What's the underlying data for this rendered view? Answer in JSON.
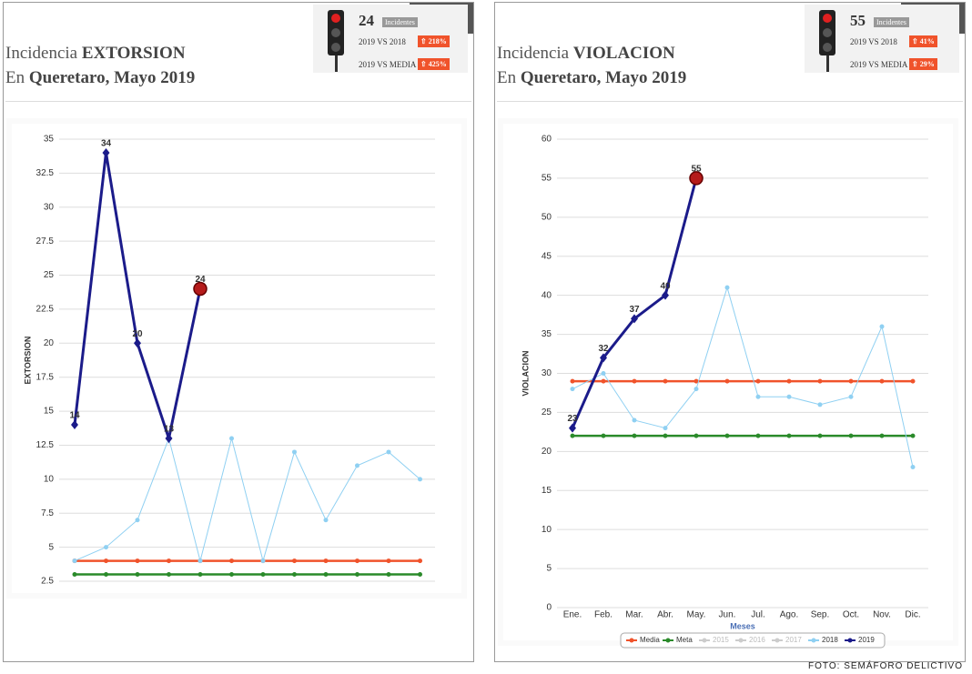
{
  "panels": [
    {
      "title_prefix": "Incidencia",
      "crime": "EXTORSION",
      "loc_prefix": "En",
      "location": "Queretaro,",
      "period": "Mayo 2019",
      "box": {
        "count": "24",
        "count_label": "Incidentes",
        "cmp1": "2019 VS 2018",
        "pct1": "218%",
        "cmp2": "2019 VS MEDIA",
        "pct2": "425%"
      }
    },
    {
      "title_prefix": "Incidencia",
      "crime": "VIOLACION",
      "loc_prefix": "En",
      "location": "Queretaro,",
      "period": "Mayo 2019",
      "box": {
        "count": "55",
        "count_label": "Incidentes",
        "cmp1": "2019 VS 2018",
        "pct1": "41%",
        "cmp2": "2019 VS MEDIA",
        "pct2": "29%"
      }
    }
  ],
  "footer": "FOTO: SEMÁFORO DELICTIVO",
  "chart_data": [
    {
      "type": "line",
      "y_label": "EXTORSION",
      "categories": [
        null,
        null,
        null,
        null,
        null,
        null,
        null,
        null,
        null,
        null,
        null,
        null
      ],
      "ylim": [
        2.5,
        35
      ],
      "yticks": [
        2.5,
        5,
        7.5,
        10,
        12.5,
        15,
        17.5,
        20,
        22.5,
        25,
        27.5,
        30,
        32.5,
        35
      ],
      "grid": true,
      "legend": false,
      "series": [
        {
          "name": "Media",
          "color": "#f0532b",
          "values": [
            4,
            4,
            4,
            4,
            4,
            4,
            4,
            4,
            4,
            4,
            4,
            4
          ]
        },
        {
          "name": "Meta",
          "color": "#2a8a2a",
          "values": [
            3,
            3,
            3,
            3,
            3,
            3,
            3,
            3,
            3,
            3,
            3,
            3
          ]
        },
        {
          "name": "2018",
          "color": "#8fd0f2",
          "values": [
            4,
            5,
            7,
            13,
            4,
            13,
            4,
            12,
            7,
            11,
            12,
            10
          ]
        },
        {
          "name": "2019",
          "color": "#1b1b8a",
          "values": [
            14,
            34,
            20,
            13,
            24,
            null,
            null,
            null,
            null,
            null,
            null,
            null
          ],
          "data_labels": true
        }
      ]
    },
    {
      "type": "line",
      "y_label": "VIOLACION",
      "x_label": "Meses",
      "categories": [
        "Ene.",
        "Feb.",
        "Mar.",
        "Abr.",
        "May.",
        "Jun.",
        "Jul.",
        "Ago.",
        "Sep.",
        "Oct.",
        "Nov.",
        "Dic."
      ],
      "ylim": [
        0,
        60
      ],
      "yticks": [
        0,
        5,
        10,
        15,
        20,
        25,
        30,
        35,
        40,
        45,
        50,
        55,
        60
      ],
      "grid": true,
      "legend": true,
      "series": [
        {
          "name": "Media",
          "color": "#f0532b",
          "values": [
            29,
            29,
            29,
            29,
            29,
            29,
            29,
            29,
            29,
            29,
            29,
            29
          ]
        },
        {
          "name": "Meta",
          "color": "#2a8a2a",
          "values": [
            22,
            22,
            22,
            22,
            22,
            22,
            22,
            22,
            22,
            22,
            22,
            22
          ]
        },
        {
          "name": "2015",
          "color": "#cccccc",
          "visible": false,
          "values": [
            null,
            null,
            null,
            null,
            null,
            null,
            null,
            null,
            null,
            null,
            null,
            null
          ]
        },
        {
          "name": "2016",
          "color": "#cccccc",
          "visible": false,
          "values": [
            null,
            null,
            null,
            null,
            null,
            null,
            null,
            null,
            null,
            null,
            null,
            null
          ]
        },
        {
          "name": "2017",
          "color": "#cccccc",
          "visible": false,
          "values": [
            null,
            null,
            null,
            null,
            null,
            null,
            null,
            null,
            null,
            null,
            null,
            null
          ]
        },
        {
          "name": "2018",
          "color": "#8fd0f2",
          "values": [
            28,
            30,
            24,
            23,
            28,
            41,
            27,
            27,
            26,
            27,
            36,
            18
          ]
        },
        {
          "name": "2019",
          "color": "#1b1b8a",
          "values": [
            23,
            32,
            37,
            40,
            55,
            null,
            null,
            null,
            null,
            null,
            null,
            null
          ],
          "data_labels": true
        }
      ]
    }
  ]
}
